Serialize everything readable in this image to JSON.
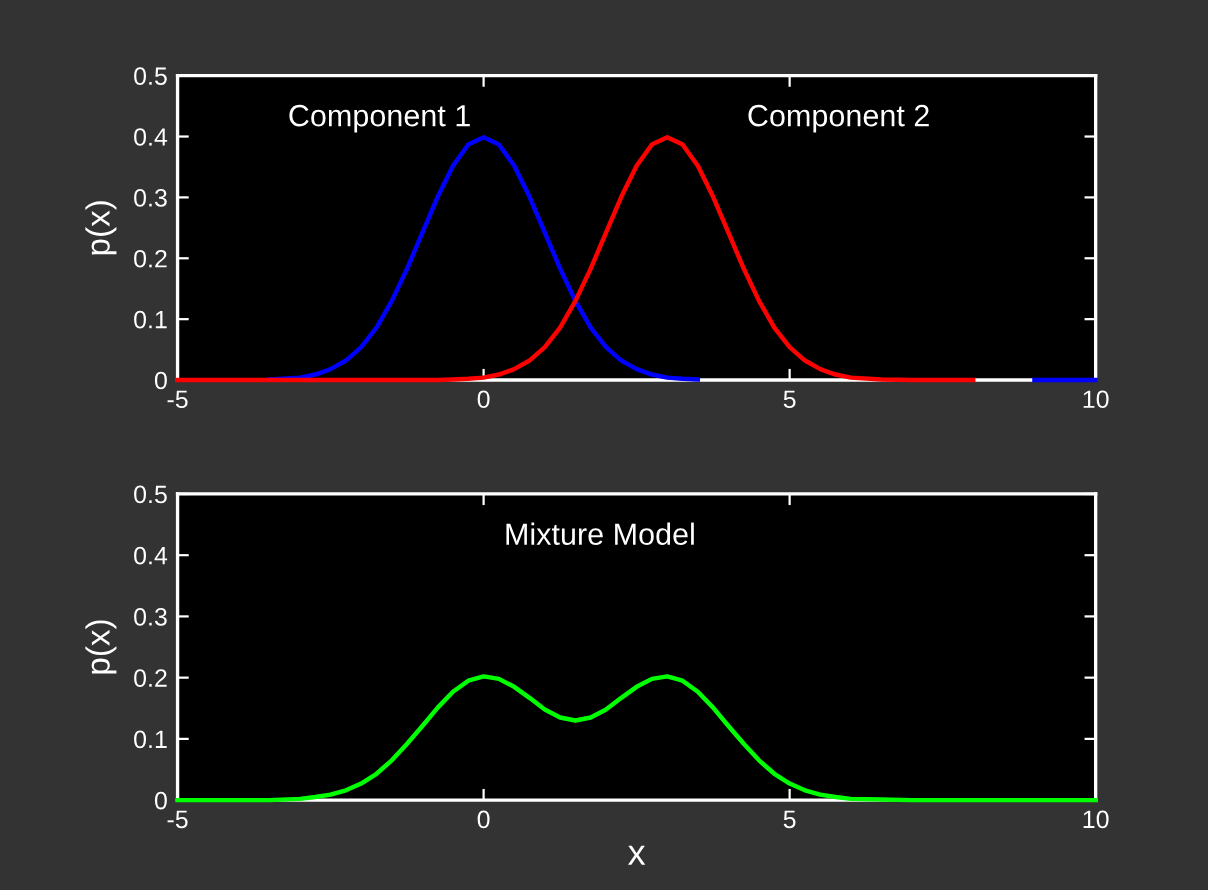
{
  "chart_data": [
    {
      "type": "line",
      "ylabel": "p(x)",
      "x": [
        -5,
        -4,
        -3.5,
        -3,
        -2.75,
        -2.5,
        -2.25,
        -2,
        -1.75,
        -1.5,
        -1.25,
        -1,
        -0.75,
        -0.5,
        -0.25,
        0,
        0.25,
        0.5,
        0.75,
        1,
        1.25,
        1.5,
        1.75,
        2,
        2.25,
        2.5,
        2.75,
        3,
        3.25,
        3.5,
        3.75,
        4,
        4.25,
        4.5,
        4.75,
        5,
        5.25,
        5.5,
        5.75,
        6,
        6.5,
        7,
        8,
        9,
        10
      ],
      "series": [
        {
          "color": "#0000ff",
          "values": [
            null,
            null,
            0.001,
            0.004,
            0.009,
            0.018,
            0.032,
            0.054,
            0.086,
            0.13,
            0.183,
            0.242,
            0.301,
            0.352,
            0.387,
            0.399,
            0.387,
            0.352,
            0.301,
            0.242,
            0.183,
            0.13,
            0.086,
            0.054,
            0.032,
            0.018,
            0.009,
            0.004,
            0.002,
            0.001,
            null,
            null,
            null,
            null,
            null,
            null,
            null,
            null,
            null,
            null,
            null,
            null,
            null,
            0,
            0
          ]
        },
        {
          "color": "#ff0000",
          "values": [
            0,
            0,
            0,
            0,
            0,
            0,
            0,
            0,
            0,
            0,
            0,
            0,
            0,
            0.001,
            0.002,
            0.004,
            0.009,
            0.018,
            0.032,
            0.054,
            0.086,
            0.13,
            0.183,
            0.242,
            0.301,
            0.352,
            0.387,
            0.399,
            0.387,
            0.352,
            0.301,
            0.242,
            0.183,
            0.13,
            0.086,
            0.054,
            0.032,
            0.018,
            0.009,
            0.004,
            0.001,
            0,
            0,
            null,
            null
          ]
        }
      ],
      "annotations": [
        "Component 1",
        "Component 2"
      ],
      "xlim": [
        -5,
        10
      ],
      "xticks": [
        -5,
        0,
        5,
        10
      ],
      "ylim": [
        0,
        0.5
      ],
      "yticks": [
        0,
        0.1,
        0.2,
        0.3,
        0.4,
        0.5
      ],
      "grid": false
    },
    {
      "type": "line",
      "xlabel": "x",
      "ylabel": "p(x)",
      "x": [
        -5,
        -4,
        -3.5,
        -3,
        -2.75,
        -2.5,
        -2.25,
        -2,
        -1.75,
        -1.5,
        -1.25,
        -1,
        -0.75,
        -0.5,
        -0.25,
        0,
        0.25,
        0.5,
        0.75,
        1,
        1.25,
        1.5,
        1.75,
        2,
        2.25,
        2.5,
        2.75,
        3,
        3.25,
        3.5,
        3.75,
        4,
        4.25,
        4.5,
        4.75,
        5,
        5.25,
        5.5,
        5.75,
        6,
        6.5,
        7,
        8,
        9,
        10
      ],
      "series": [
        {
          "color": "#00ff00",
          "values": [
            0,
            0,
            0,
            0.002,
            0.005,
            0.009,
            0.016,
            0.027,
            0.043,
            0.065,
            0.092,
            0.121,
            0.151,
            0.177,
            0.195,
            0.202,
            0.198,
            0.185,
            0.167,
            0.148,
            0.135,
            0.13,
            0.135,
            0.148,
            0.167,
            0.185,
            0.198,
            0.202,
            0.195,
            0.177,
            0.151,
            0.121,
            0.092,
            0.065,
            0.043,
            0.027,
            0.016,
            0.009,
            0.005,
            0.002,
            0.001,
            0,
            0,
            0,
            0
          ]
        }
      ],
      "annotations": [
        "Mixture Model"
      ],
      "xlim": [
        -5,
        10
      ],
      "xticks": [
        -5,
        0,
        5,
        10
      ],
      "ylim": [
        0,
        0.5
      ],
      "yticks": [
        0,
        0.1,
        0.2,
        0.3,
        0.4,
        0.5
      ],
      "grid": false
    }
  ]
}
